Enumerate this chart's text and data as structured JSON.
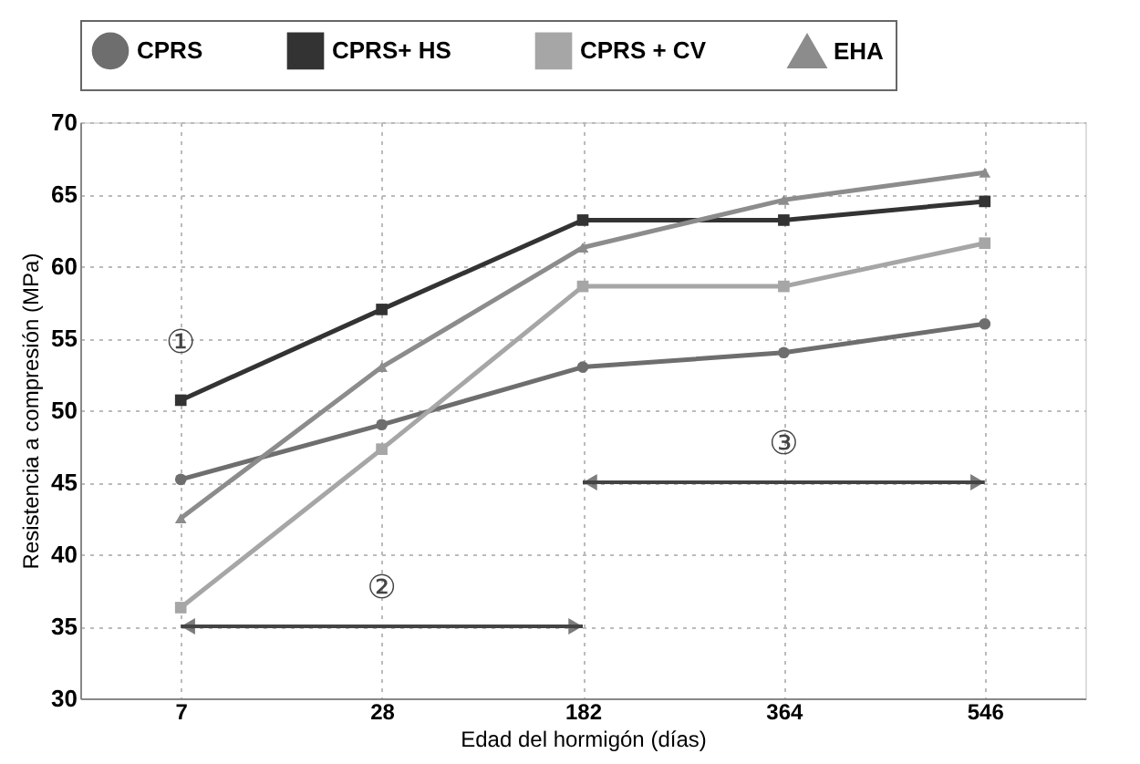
{
  "chart_data": {
    "type": "line",
    "xlabel": "Edad del hormigón (días)",
    "ylabel": "Resistencia a compresión (MPa)",
    "categories": [
      "7",
      "28",
      "182",
      "364",
      "546"
    ],
    "series": [
      {
        "name": "CPRS",
        "color": "#6e6e6e",
        "marker": "circle",
        "values": [
          45.2,
          49,
          53,
          54,
          56
        ]
      },
      {
        "name": "CPRS+ HS",
        "color": "#333333",
        "marker": "square",
        "values": [
          50.7,
          57,
          63.2,
          63.2,
          64.5
        ]
      },
      {
        "name": "CPRS + CV",
        "color": "#a6a6a6",
        "marker": "square",
        "values": [
          36.3,
          47.3,
          58.6,
          58.6,
          61.6
        ]
      },
      {
        "name": "EHA",
        "color": "#8c8c8c",
        "marker": "triangle",
        "values": [
          42.5,
          53,
          61.3,
          64.6,
          66.5
        ]
      }
    ],
    "ylim": [
      30,
      70
    ],
    "yticks": [
      30,
      35,
      40,
      45,
      50,
      55,
      60,
      65,
      70
    ],
    "grid": true,
    "legend": "top",
    "line_style": "solid",
    "annotations": [
      "①",
      "②",
      "③"
    ]
  }
}
